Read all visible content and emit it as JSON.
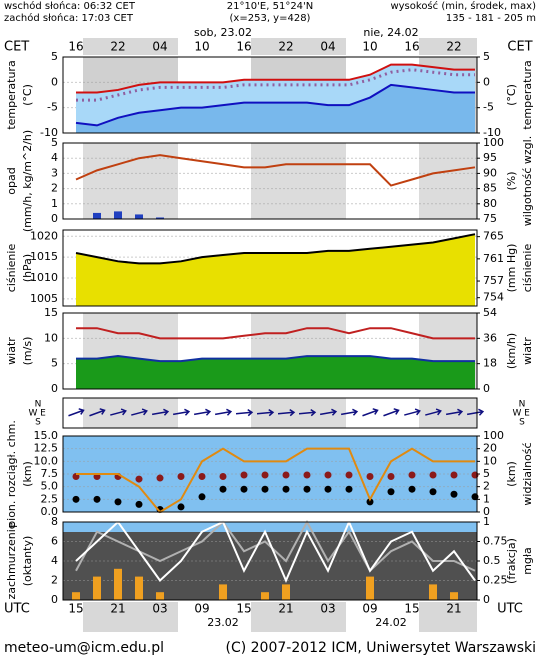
{
  "header": {
    "sunrise": "wschód słońca: 06:32 CET",
    "sunset": "zachód słońca: 17:03 CET",
    "coords": "21°10'E, 51°24'N",
    "grid_point": "(x=253, y=428)",
    "elevation_title": "wysokość (min, środek, max)",
    "elevation": "135 - 181 - 205 m"
  },
  "chart_data": {
    "type": "meteogram",
    "time_zone": "CET",
    "utc_zone": "UTC",
    "categories": [
      "16",
      null,
      "22",
      null,
      "04",
      null,
      "10",
      null,
      "16",
      null,
      "22",
      null,
      "04",
      null,
      "10",
      null,
      "16",
      null,
      "22",
      null
    ],
    "utc_categories": [
      "15",
      null,
      "21",
      null,
      "03",
      null,
      "09",
      null,
      "15",
      null,
      "21",
      null,
      "03",
      null,
      "09",
      null,
      "15",
      null,
      "21",
      null
    ],
    "day_labels": [
      "sob, 23.02",
      "nie, 24.02"
    ],
    "utc_day_labels": [
      "23.02",
      "24.02"
    ],
    "panels": [
      {
        "type": "line",
        "ylabel": [
          "temperatura",
          "(°C)"
        ],
        "y2label": [
          "(°C)",
          "temperatura"
        ],
        "ylim": [
          -10,
          5
        ],
        "yticks": [
          -10,
          -5,
          0,
          5
        ],
        "y2lim": [
          -10,
          5
        ],
        "y2ticks": [
          -10,
          -5,
          0,
          5
        ],
        "series": [
          {
            "color": "#d01010",
            "area_color": "#a8d8f8",
            "style": "line",
            "values": [
              -2,
              -2,
              -1.5,
              -0.5,
              0,
              0,
              0,
              0,
              0.5,
              0.5,
              0.5,
              0.5,
              0.5,
              0.5,
              1.5,
              3.5,
              3.5,
              3,
              2.5,
              2.5
            ]
          },
          {
            "color": "#9060a0",
            "style": "dotted",
            "values": [
              -3.5,
              -3.5,
              -2.5,
              -1.5,
              -1,
              -1,
              -1,
              -1,
              -0.5,
              -0.5,
              -0.5,
              -0.5,
              -0.5,
              -0.5,
              0.5,
              2,
              2.5,
              2,
              1.5,
              1.5
            ]
          },
          {
            "color": "#1010c0",
            "area_color": "#78b8ec",
            "style": "line",
            "values": [
              -8,
              -8.5,
              -7,
              -6,
              -5.5,
              -5,
              -5,
              -4.5,
              -4,
              -4,
              -4,
              -4,
              -4.5,
              -4.5,
              -3,
              -0.5,
              -1,
              -1.5,
              -2,
              -2
            ]
          }
        ]
      },
      {
        "type": "line",
        "ylabel": [
          "opad",
          "(mm/h, kg/m^2/h)"
        ],
        "y2label": [
          "(%)",
          "wilgotność wzgl."
        ],
        "ylim": [
          0,
          5
        ],
        "yticks": [
          0,
          1,
          2,
          3,
          4,
          5
        ],
        "y2lim": [
          75,
          100
        ],
        "y2ticks": [
          75,
          80,
          85,
          90,
          95,
          100
        ],
        "series": [
          {
            "color": "#2040c0",
            "style": "bars",
            "values": [
              0,
              0.4,
              0.5,
              0.3,
              0.1,
              0,
              0,
              0,
              0,
              0,
              0,
              0,
              0,
              0,
              0,
              0,
              0,
              0,
              0,
              0
            ]
          },
          {
            "color": "#c04010",
            "style": "line",
            "axis": "y2",
            "values": [
              88,
              91,
              93,
              95,
              96,
              95,
              94,
              93,
              92,
              92,
              93,
              93,
              93,
              93,
              93,
              86,
              88,
              90,
              91,
              92
            ]
          }
        ]
      },
      {
        "type": "line",
        "ylabel": [
          "ciśnienie",
          "(hPa)"
        ],
        "y2label": [
          "(mm Hg)",
          "ciśnienie"
        ],
        "ylim": [
          1003.3,
          1021.5
        ],
        "yticks": [
          1005,
          1010,
          1015,
          1020
        ],
        "y2lim": [
          752.5,
          766.2
        ],
        "y2ticks": [
          754,
          757,
          761,
          765
        ],
        "series": [
          {
            "color": "#000000",
            "area_color": "#e8e000",
            "style": "line",
            "values": [
              1016,
              1015,
              1014,
              1013.5,
              1013.5,
              1014,
              1015,
              1015.5,
              1016,
              1016,
              1016,
              1016,
              1016.5,
              1016.5,
              1017,
              1017.5,
              1018,
              1018.5,
              1019.5,
              1020.5
            ]
          }
        ]
      },
      {
        "type": "line",
        "ylabel": [
          "wiatr",
          "(m/s)"
        ],
        "y2label": [
          "(km/h)",
          "wiatr"
        ],
        "ylim": [
          0,
          15
        ],
        "yticks": [
          0,
          5,
          10,
          15
        ],
        "y2lim": [
          0,
          54
        ],
        "y2ticks": [
          0,
          18,
          36,
          54
        ],
        "series": [
          {
            "color": "#1030a0",
            "area_color": "#1a9a1a",
            "style": "line",
            "values": [
              6,
              6,
              6.5,
              6,
              5.5,
              5.5,
              6,
              6,
              6,
              6,
              6,
              6.5,
              6.5,
              6.5,
              6.5,
              6,
              6,
              5.5,
              5.5,
              5.5
            ]
          },
          {
            "color": "#c02020",
            "style": "line",
            "values": [
              12,
              12,
              11,
              11,
              10,
              10,
              10,
              10,
              10.5,
              11,
              11,
              12,
              12,
              11,
              12,
              12,
              11,
              10,
              10,
              10
            ]
          }
        ]
      },
      {
        "type": "arrows",
        "compass": [
          "N",
          "E",
          "S",
          "W"
        ],
        "series": [
          {
            "color": "#101080",
            "style": "arrows",
            "values": [
              250,
              250,
              255,
              255,
              260,
              260,
              260,
              260,
              265,
              265,
              265,
              265,
              260,
              260,
              250,
              250,
              255,
              255,
              260,
              260
            ]
          }
        ]
      },
      {
        "type": "line",
        "ylabel": [
          "pion. rozciągł. chm.",
          "(km)"
        ],
        "y2label": [
          "(km)",
          "widzialność"
        ],
        "ylim": [
          0,
          15
        ],
        "yticks": [
          {
            "value": 0,
            "label": "0.0"
          },
          {
            "value": 2.5,
            "label": "2.5"
          },
          {
            "value": 5,
            "label": "5.0"
          },
          {
            "value": 7.5,
            "label": "7.5"
          },
          {
            "value": 10,
            "label": "10.0"
          },
          {
            "value": 12.5,
            "label": "12.5"
          },
          {
            "value": 15,
            "label": "15.0"
          }
        ],
        "y2lim": [
          0,
          100
        ],
        "y2scale": "piecewise",
        "y2ticks": [
          0,
          1,
          2,
          5,
          10,
          20,
          100
        ],
        "series": [
          {
            "color": "#8b1a1a",
            "style": "dots",
            "values": [
              7,
              7,
              7,
              6.5,
              6.7,
              7,
              7,
              7,
              7.3,
              7.3,
              7.3,
              7.3,
              7.3,
              7.3,
              7,
              7,
              7.3,
              7.3,
              7.3,
              7.3
            ]
          },
          {
            "color": "#000000",
            "style": "dots",
            "values": [
              2.5,
              2.5,
              2,
              1.5,
              0.5,
              1,
              3,
              4.5,
              4.5,
              4.5,
              4.5,
              4.5,
              4.5,
              4.5,
              2,
              4,
              4.5,
              4,
              3.5,
              3
            ]
          },
          {
            "color": "#e08a10",
            "style": "line",
            "axis": "y2",
            "values": [
              5,
              5,
              5,
              2,
              0,
              1,
              10,
              20,
              10,
              10,
              10,
              20,
              20,
              20,
              1,
              10,
              20,
              10,
              10,
              10
            ]
          }
        ]
      },
      {
        "type": "line",
        "ylabel": [
          "zachmurzenie",
          "(oktanty)"
        ],
        "y2label": [
          "(frakcja)",
          "mgła"
        ],
        "ylim": [
          0,
          8
        ],
        "yticks": [
          0,
          2,
          4,
          6,
          8
        ],
        "y2lim": [
          0,
          1
        ],
        "y2ticks": [
          0,
          0.25,
          0.5,
          0.75,
          1
        ],
        "series": [
          {
            "color": "#f0a020",
            "style": "bars",
            "axis": "y2",
            "values": [
              0.1,
              0.3,
              0.4,
              0.3,
              0.1,
              0,
              0,
              0.2,
              0,
              0.1,
              0.2,
              0,
              0,
              0,
              0.3,
              0,
              0,
              0.2,
              0.1,
              0
            ]
          },
          {
            "color": "#b0b0b0",
            "style": "line",
            "values": [
              3,
              7,
              6,
              5,
              4,
              5,
              6,
              8,
              5,
              6,
              4,
              8,
              4,
              7,
              3,
              5,
              6,
              4,
              4,
              3
            ]
          },
          {
            "color": "#ffffff",
            "style": "line",
            "values": [
              4,
              6,
              8,
              5,
              2,
              4,
              7,
              8,
              3,
              7,
              2,
              7,
              3,
              8,
              3,
              6,
              7,
              3,
              5,
              2
            ]
          }
        ]
      }
    ]
  },
  "footer": {
    "email": "meteo-um@icm.edu.pl",
    "copyright": "(C) 2007-2012 ICM, Uniwersytet Warszawski"
  }
}
